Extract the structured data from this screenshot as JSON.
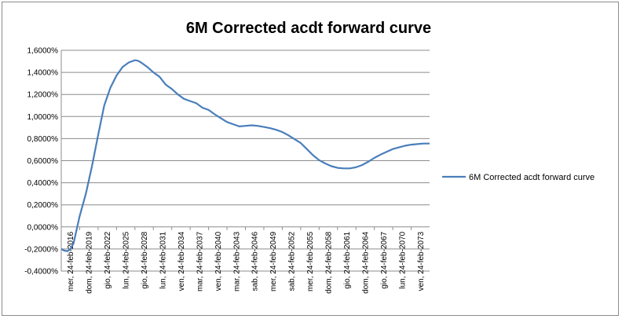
{
  "chart_data": {
    "type": "line",
    "title": "6M Corrected acdt forward curve",
    "xlabel": "",
    "ylabel": "",
    "ylim": [
      -0.4,
      1.6
    ],
    "yticks": [
      "-0,4000%",
      "-0,2000%",
      "0,0000%",
      "0,2000%",
      "0,4000%",
      "0,6000%",
      "0,8000%",
      "1,0000%",
      "1,2000%",
      "1,4000%",
      "1,6000%"
    ],
    "ytick_values": [
      -0.4,
      -0.2,
      0.0,
      0.2,
      0.4,
      0.6,
      0.8,
      1.0,
      1.2,
      1.4,
      1.6
    ],
    "xticks": [
      "mer, 24-feb-2016",
      "dom, 24-feb-2019",
      "gio, 24-feb-2022",
      "lun, 24-feb-2025",
      "gio, 24-feb-2028",
      "lun, 24-feb-2031",
      "ven, 24-feb-2034",
      "mar, 24-feb-2037",
      "ven, 24-feb-2040",
      "mar, 24-feb-2043",
      "sab, 24-feb-2046",
      "mer, 24-feb-2049",
      "sab, 24-feb-2052",
      "mer, 24-feb-2055",
      "dom, 24-feb-2058",
      "gio, 24-feb-2061",
      "dom, 24-feb-2064",
      "gio, 24-feb-2067",
      "lun, 24-feb-2070",
      "ven, 24-feb-2073"
    ],
    "xlim": [
      2016,
      2076
    ],
    "grid": true,
    "legend": "right",
    "series": [
      {
        "name": "6M Corrected acdt forward curve",
        "color": "#4a7ebb",
        "x": [
          2016,
          2016.5,
          2017,
          2017.5,
          2018,
          2019,
          2020,
          2021,
          2022,
          2023,
          2024,
          2025,
          2026,
          2027,
          2028,
          2028.5,
          2029,
          2030,
          2031,
          2032,
          2033,
          2034,
          2035,
          2036,
          2037,
          2038,
          2039,
          2040,
          2041,
          2042,
          2043,
          2044,
          2045,
          2046,
          2047,
          2048,
          2049,
          2050,
          2051,
          2052,
          2053,
          2054,
          2055,
          2056,
          2057,
          2058,
          2059,
          2060,
          2061,
          2062,
          2063,
          2064,
          2065,
          2066,
          2067,
          2068,
          2069,
          2070,
          2071,
          2072,
          2073,
          2074,
          2075,
          2076
        ],
        "y": [
          -0.2,
          -0.215,
          -0.22,
          -0.2,
          -0.15,
          0.1,
          0.3,
          0.55,
          0.83,
          1.1,
          1.26,
          1.37,
          1.45,
          1.49,
          1.51,
          1.505,
          1.49,
          1.45,
          1.4,
          1.36,
          1.29,
          1.25,
          1.2,
          1.16,
          1.14,
          1.12,
          1.08,
          1.06,
          1.02,
          0.985,
          0.95,
          0.93,
          0.91,
          0.915,
          0.92,
          0.915,
          0.905,
          0.895,
          0.88,
          0.86,
          0.83,
          0.795,
          0.76,
          0.705,
          0.65,
          0.605,
          0.575,
          0.55,
          0.535,
          0.53,
          0.53,
          0.54,
          0.56,
          0.59,
          0.625,
          0.655,
          0.68,
          0.705,
          0.72,
          0.735,
          0.745,
          0.75,
          0.755,
          0.755
        ]
      }
    ]
  }
}
